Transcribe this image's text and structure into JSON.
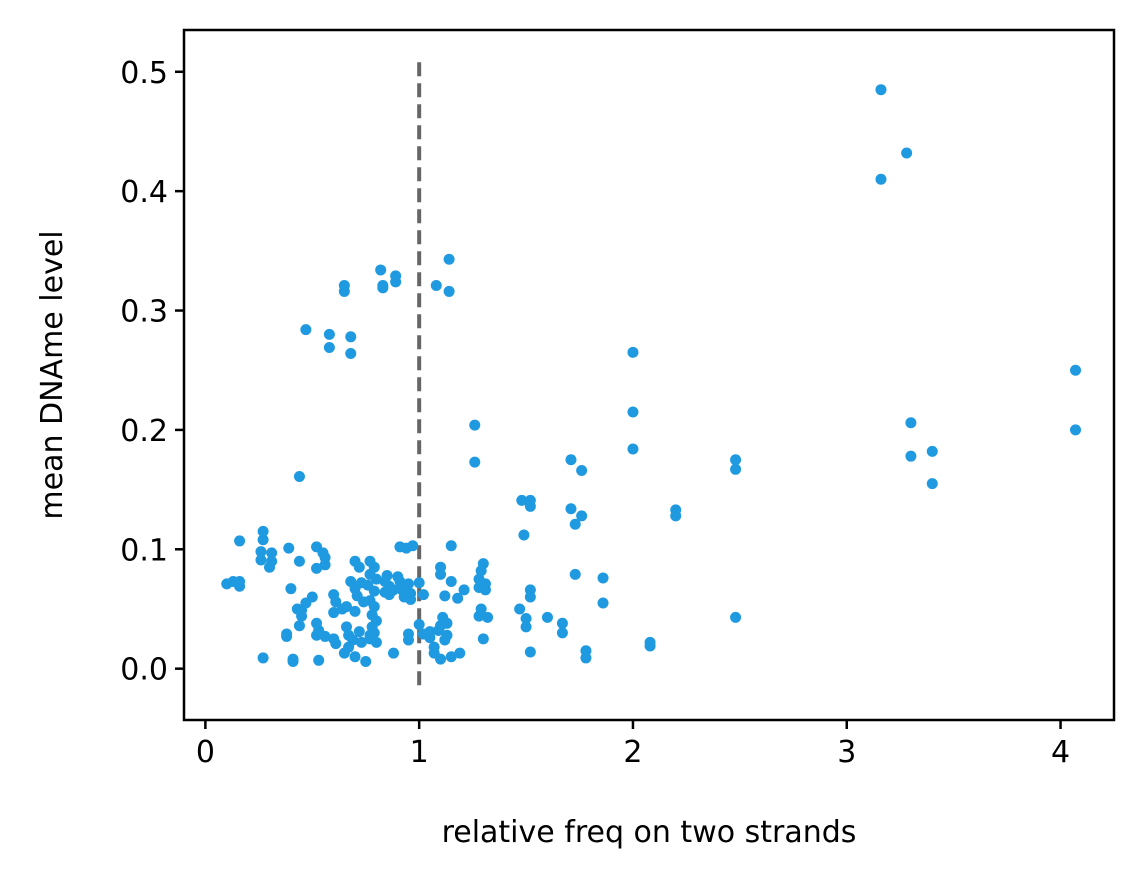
{
  "chart_data": {
    "type": "scatter",
    "title": "",
    "xlabel": "relative freq on two strands",
    "ylabel": "mean DNAme level",
    "xlim": [
      -0.1,
      4.25
    ],
    "ylim": [
      -0.043,
      0.535
    ],
    "x_ticks": [
      0,
      1,
      2,
      3,
      4
    ],
    "y_ticks": [
      0.0,
      0.1,
      0.2,
      0.3,
      0.4,
      0.5
    ],
    "x_tick_labels": [
      "0",
      "1",
      "2",
      "3",
      "4"
    ],
    "y_tick_labels": [
      "0.0",
      "0.1",
      "0.2",
      "0.3",
      "0.4",
      "0.5"
    ],
    "grid": false,
    "legend": "none",
    "point_color": "#1f9ae0",
    "reference_line": {
      "orientation": "vertical",
      "x": 1.0,
      "y_range": [
        -0.018,
        0.508
      ],
      "style": "dashed",
      "color": "#666666"
    },
    "series": [
      {
        "points": [
          [
            3.16,
            0.485
          ],
          [
            3.28,
            0.432
          ],
          [
            3.16,
            0.41
          ],
          [
            4.07,
            0.25
          ],
          [
            4.07,
            0.2
          ],
          [
            3.3,
            0.206
          ],
          [
            3.3,
            0.178
          ],
          [
            3.4,
            0.182
          ],
          [
            3.4,
            0.155
          ],
          [
            2.0,
            0.265
          ],
          [
            2.0,
            0.215
          ],
          [
            2.0,
            0.184
          ],
          [
            2.48,
            0.175
          ],
          [
            2.48,
            0.167
          ],
          [
            2.48,
            0.043
          ],
          [
            2.2,
            0.133
          ],
          [
            2.2,
            0.128
          ],
          [
            2.08,
            0.022
          ],
          [
            2.08,
            0.019
          ],
          [
            1.71,
            0.175
          ],
          [
            1.76,
            0.166
          ],
          [
            1.71,
            0.134
          ],
          [
            1.76,
            0.128
          ],
          [
            1.73,
            0.121
          ],
          [
            1.73,
            0.079
          ],
          [
            1.86,
            0.076
          ],
          [
            1.86,
            0.055
          ],
          [
            1.78,
            0.015
          ],
          [
            1.78,
            0.009
          ],
          [
            1.6,
            0.043
          ],
          [
            1.67,
            0.038
          ],
          [
            1.67,
            0.03
          ],
          [
            1.48,
            0.141
          ],
          [
            1.52,
            0.141
          ],
          [
            1.52,
            0.136
          ],
          [
            1.49,
            0.112
          ],
          [
            1.52,
            0.066
          ],
          [
            1.52,
            0.06
          ],
          [
            1.47,
            0.05
          ],
          [
            1.5,
            0.042
          ],
          [
            1.5,
            0.035
          ],
          [
            1.52,
            0.014
          ],
          [
            1.26,
            0.204
          ],
          [
            1.26,
            0.173
          ],
          [
            1.14,
            0.343
          ],
          [
            1.14,
            0.316
          ],
          [
            1.08,
            0.321
          ],
          [
            1.3,
            0.088
          ],
          [
            1.29,
            0.082
          ],
          [
            1.28,
            0.075
          ],
          [
            1.28,
            0.068
          ],
          [
            1.31,
            0.071
          ],
          [
            1.31,
            0.066
          ],
          [
            1.29,
            0.05
          ],
          [
            1.28,
            0.044
          ],
          [
            1.32,
            0.043
          ],
          [
            1.3,
            0.025
          ],
          [
            1.15,
            0.103
          ],
          [
            1.1,
            0.085
          ],
          [
            1.1,
            0.079
          ],
          [
            1.15,
            0.073
          ],
          [
            1.21,
            0.066
          ],
          [
            1.18,
            0.059
          ],
          [
            1.12,
            0.061
          ],
          [
            1.11,
            0.043
          ],
          [
            1.13,
            0.038
          ],
          [
            1.1,
            0.036
          ],
          [
            1.09,
            0.032
          ],
          [
            1.13,
            0.028
          ],
          [
            1.12,
            0.024
          ],
          [
            1.05,
            0.026
          ],
          [
            1.05,
            0.031
          ],
          [
            1.07,
            0.018
          ],
          [
            1.07,
            0.013
          ],
          [
            1.1,
            0.008
          ],
          [
            1.15,
            0.01
          ],
          [
            1.19,
            0.013
          ],
          [
            0.82,
            0.334
          ],
          [
            0.89,
            0.329
          ],
          [
            0.89,
            0.324
          ],
          [
            0.83,
            0.321
          ],
          [
            0.83,
            0.319
          ],
          [
            0.65,
            0.321
          ],
          [
            0.65,
            0.316
          ],
          [
            0.68,
            0.278
          ],
          [
            0.68,
            0.264
          ],
          [
            0.47,
            0.284
          ],
          [
            0.58,
            0.28
          ],
          [
            0.58,
            0.269
          ],
          [
            0.44,
            0.161
          ],
          [
            0.27,
            0.115
          ],
          [
            0.27,
            0.108
          ],
          [
            0.16,
            0.107
          ],
          [
            0.39,
            0.101
          ],
          [
            0.52,
            0.102
          ],
          [
            0.55,
            0.097
          ],
          [
            0.26,
            0.098
          ],
          [
            0.31,
            0.097
          ],
          [
            0.26,
            0.091
          ],
          [
            0.31,
            0.09
          ],
          [
            0.3,
            0.085
          ],
          [
            0.44,
            0.09
          ],
          [
            0.56,
            0.093
          ],
          [
            0.52,
            0.084
          ],
          [
            0.56,
            0.087
          ],
          [
            0.1,
            0.071
          ],
          [
            0.13,
            0.073
          ],
          [
            0.16,
            0.073
          ],
          [
            0.16,
            0.069
          ],
          [
            0.4,
            0.067
          ],
          [
            0.5,
            0.06
          ],
          [
            0.47,
            0.055
          ],
          [
            0.43,
            0.05
          ],
          [
            0.45,
            0.049
          ],
          [
            0.45,
            0.044
          ],
          [
            0.44,
            0.036
          ],
          [
            0.38,
            0.029
          ],
          [
            0.38,
            0.027
          ],
          [
            0.27,
            0.009
          ],
          [
            0.41,
            0.008
          ],
          [
            0.41,
            0.006
          ],
          [
            0.53,
            0.007
          ],
          [
            0.52,
            0.038
          ],
          [
            0.53,
            0.032
          ],
          [
            0.52,
            0.028
          ],
          [
            0.56,
            0.027
          ],
          [
            0.6,
            0.025
          ],
          [
            0.61,
            0.021
          ],
          [
            0.6,
            0.062
          ],
          [
            0.61,
            0.056
          ],
          [
            0.6,
            0.047
          ],
          [
            0.64,
            0.05
          ],
          [
            0.66,
            0.052
          ],
          [
            0.7,
            0.09
          ],
          [
            0.72,
            0.085
          ],
          [
            0.68,
            0.073
          ],
          [
            0.7,
            0.067
          ],
          [
            0.73,
            0.072
          ],
          [
            0.76,
            0.07
          ],
          [
            0.71,
            0.061
          ],
          [
            0.74,
            0.056
          ],
          [
            0.7,
            0.048
          ],
          [
            0.66,
            0.035
          ],
          [
            0.67,
            0.028
          ],
          [
            0.69,
            0.024
          ],
          [
            0.72,
            0.031
          ],
          [
            0.73,
            0.022
          ],
          [
            0.67,
            0.018
          ],
          [
            0.65,
            0.013
          ],
          [
            0.7,
            0.01
          ],
          [
            0.75,
            0.006
          ],
          [
            0.77,
            0.09
          ],
          [
            0.79,
            0.085
          ],
          [
            0.77,
            0.079
          ],
          [
            0.8,
            0.075
          ],
          [
            0.79,
            0.065
          ],
          [
            0.77,
            0.057
          ],
          [
            0.79,
            0.052
          ],
          [
            0.78,
            0.045
          ],
          [
            0.8,
            0.04
          ],
          [
            0.78,
            0.035
          ],
          [
            0.79,
            0.03
          ],
          [
            0.77,
            0.028
          ],
          [
            0.77,
            0.025
          ],
          [
            0.8,
            0.022
          ],
          [
            0.85,
            0.078
          ],
          [
            0.84,
            0.073
          ],
          [
            0.86,
            0.069
          ],
          [
            0.84,
            0.064
          ],
          [
            0.88,
            0.066
          ],
          [
            0.86,
            0.062
          ],
          [
            0.9,
            0.077
          ],
          [
            0.91,
            0.073
          ],
          [
            0.92,
            0.066
          ],
          [
            0.93,
            0.06
          ],
          [
            0.95,
            0.071
          ],
          [
            0.96,
            0.063
          ],
          [
            0.91,
            0.102
          ],
          [
            0.94,
            0.101
          ],
          [
            0.97,
            0.103
          ],
          [
            0.96,
            0.058
          ],
          [
            0.95,
            0.029
          ],
          [
            0.95,
            0.024
          ],
          [
            0.88,
            0.013
          ],
          [
            1.0,
            0.072
          ],
          [
            1.02,
            0.062
          ],
          [
            1.0,
            0.037
          ],
          [
            1.02,
            0.029
          ]
        ]
      }
    ]
  }
}
